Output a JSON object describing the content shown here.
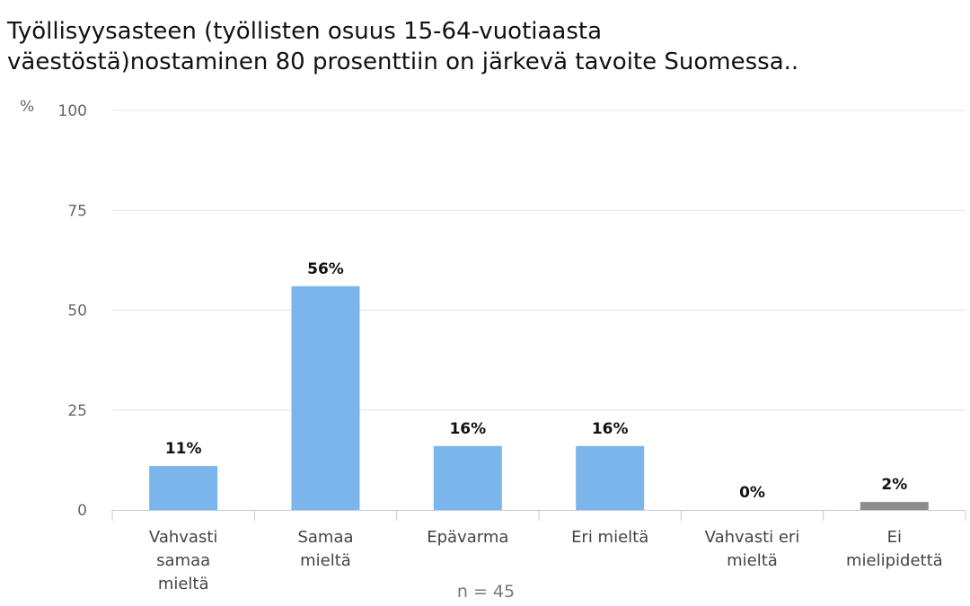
{
  "chart_data": {
    "type": "bar",
    "title_lines": [
      "Työllisyysasteen (työllisten osuus 15-64-vuotiaasta",
      "väestöstä)nostaminen 80 prosenttiin on järkevä tavoite Suomessa.."
    ],
    "ylabel": "%",
    "ylim": [
      0,
      100
    ],
    "yticks": [
      0,
      25,
      50,
      75,
      100
    ],
    "grid": true,
    "categories": [
      [
        "Vahvasti",
        "samaa",
        "mieltä"
      ],
      [
        "Samaa",
        "mieltä"
      ],
      [
        "Epävarma"
      ],
      [
        "Eri mieltä"
      ],
      [
        "Vahvasti eri",
        "mieltä"
      ],
      [
        "Ei",
        "mielipidettä"
      ]
    ],
    "values": [
      11,
      56,
      16,
      16,
      0,
      2
    ],
    "value_labels": [
      "11%",
      "56%",
      "16%",
      "16%",
      "0%",
      "2%"
    ],
    "bar_colors": [
      "#7cb5ec",
      "#7cb5ec",
      "#7cb5ec",
      "#7cb5ec",
      "#7cb5ec",
      "#8c8c8c"
    ],
    "footnote": "n = 45"
  }
}
